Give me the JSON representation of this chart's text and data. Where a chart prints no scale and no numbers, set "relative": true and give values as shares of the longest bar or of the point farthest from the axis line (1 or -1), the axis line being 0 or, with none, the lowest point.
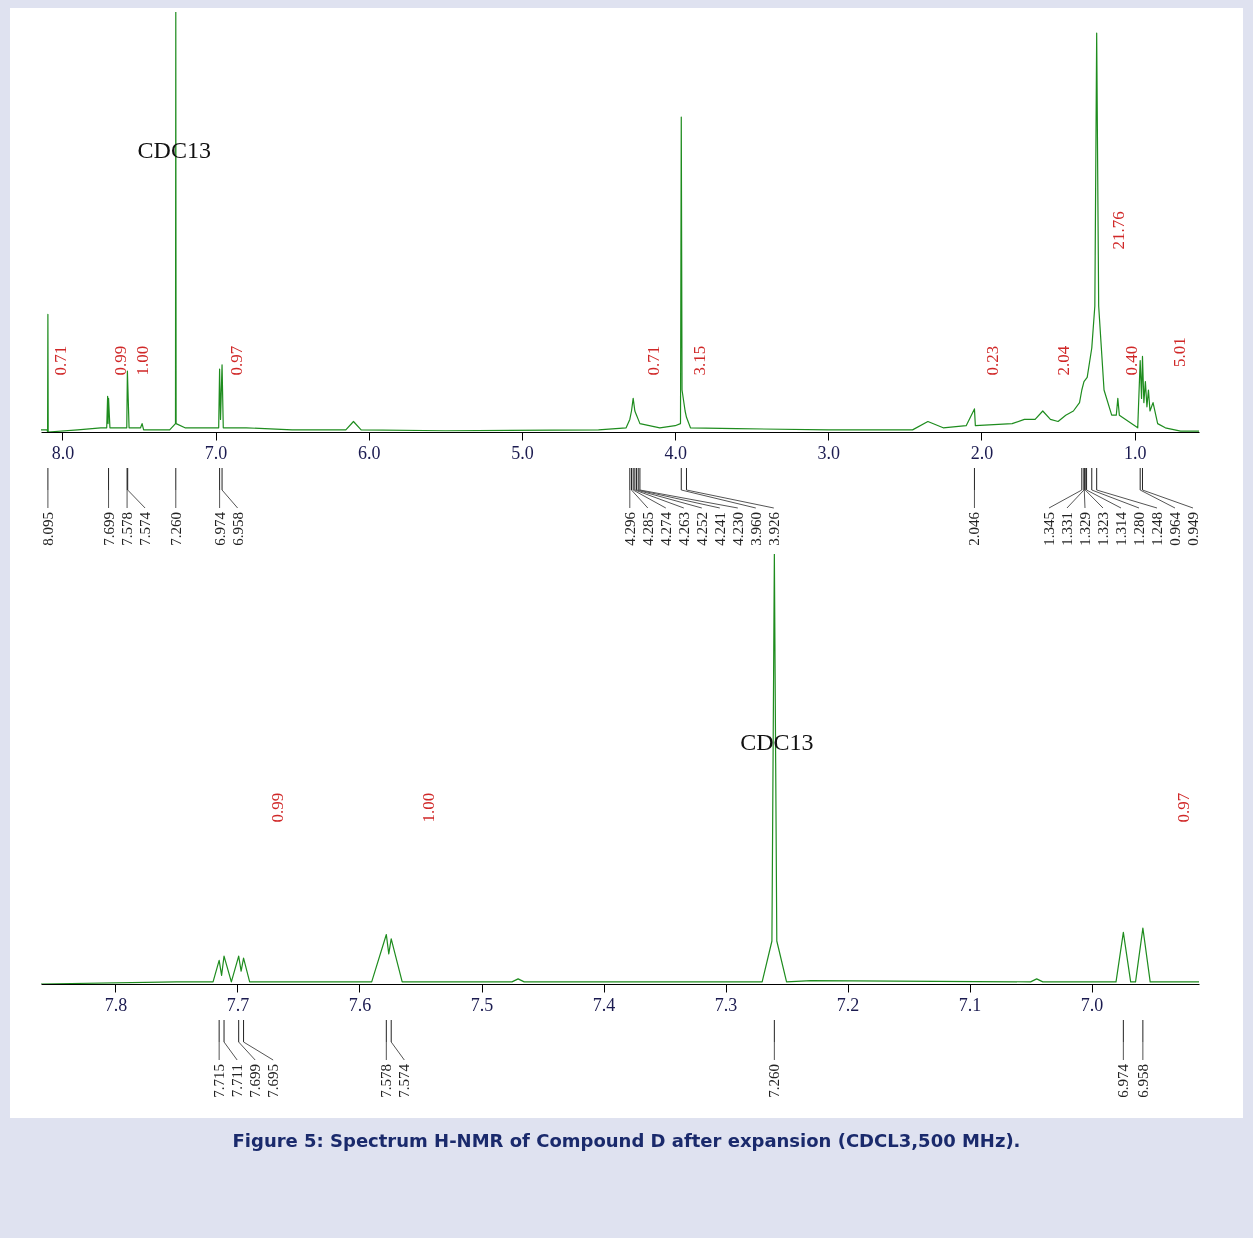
{
  "chart_data": [
    {
      "type": "line",
      "relative": true,
      "xlim": [
        8.14,
        0.58
      ],
      "xticks": [
        {
          "value": 8,
          "label": "8.0"
        },
        {
          "value": 7,
          "label": "7.0"
        },
        {
          "value": 6,
          "label": "6.0"
        },
        {
          "value": 5,
          "label": "5.0"
        },
        {
          "value": 4,
          "label": "4.0"
        },
        {
          "value": 3,
          "label": "3.0"
        },
        {
          "value": 2,
          "label": "2.0"
        },
        {
          "value": 1,
          "label": "1.0"
        }
      ],
      "grid": false,
      "series": [
        {
          "color": "#1e8c1e",
          "x": [
            8.14,
            8.1,
            8.097,
            8.095,
            8.093,
            7.9,
            7.75,
            7.711,
            7.705,
            7.702,
            7.699,
            7.69,
            7.58,
            7.576,
            7.565,
            7.49,
            7.48,
            7.47,
            7.3,
            7.262,
            7.26,
            7.258,
            7.2,
            7.05,
            6.98,
            6.974,
            6.968,
            6.958,
            6.95,
            6.8,
            6.5,
            6.15,
            6.1,
            6.05,
            5.5,
            4.5,
            4.32,
            4.296,
            4.285,
            4.274,
            4.263,
            4.252,
            4.241,
            4.23,
            4.1,
            4.0,
            3.965,
            3.96,
            3.955,
            3.935,
            3.926,
            3.9,
            3.6,
            3.0,
            2.45,
            2.35,
            2.25,
            2.1,
            2.046,
            2.04,
            1.8,
            1.72,
            1.65,
            1.6,
            1.55,
            1.5,
            1.45,
            1.4,
            1.36,
            1.345,
            1.331,
            1.31,
            1.28,
            1.26,
            1.248,
            1.235,
            1.2,
            1.15,
            1.12,
            1.11,
            1.1,
            0.98,
            0.964,
            0.955,
            0.949,
            0.94,
            0.93,
            0.92,
            0.91,
            0.9,
            0.88,
            0.85,
            0.8,
            0.7,
            0.58
          ],
          "values": [
            0.005,
            0.005,
            0,
            0.28,
            0,
            0.005,
            0.01,
            0.01,
            0.085,
            0.02,
            0.08,
            0.01,
            0.01,
            0.145,
            0.01,
            0.01,
            0.02,
            0.005,
            0.005,
            0.02,
            1,
            0.02,
            0.01,
            0.01,
            0.01,
            0.15,
            0.03,
            0.16,
            0.01,
            0.01,
            0.005,
            0.005,
            0.025,
            0.005,
            0.003,
            0.005,
            0.01,
            0.03,
            0.05,
            0.08,
            0.05,
            0.04,
            0.03,
            0.02,
            0.01,
            0.015,
            0.02,
            0.75,
            0.1,
            0.05,
            0.035,
            0.01,
            0.008,
            0.005,
            0.005,
            0.025,
            0.01,
            0.015,
            0.055,
            0.015,
            0.02,
            0.03,
            0.03,
            0.05,
            0.03,
            0.025,
            0.04,
            0.05,
            0.07,
            0.1,
            0.12,
            0.13,
            0.2,
            0.3,
            0.95,
            0.3,
            0.1,
            0.04,
            0.04,
            0.08,
            0.04,
            0.01,
            0.17,
            0.08,
            0.18,
            0.07,
            0.12,
            0.06,
            0.1,
            0.05,
            0.07,
            0.02,
            0.01,
            0.002,
            0.002
          ]
        }
      ],
      "annotations": [
        {
          "text": "CDC13",
          "x": 7.27,
          "y": 0.67
        },
        "0.71",
        "0.99",
        "1.00",
        "0.97",
        "0.71",
        "3.15",
        "0.23",
        "2.04",
        "21.76",
        "0.40",
        "5.01",
        {
          "text": "8.095",
          "x": 8.095
        },
        {
          "text": "7.699",
          "x": 7.699
        },
        {
          "text": "7.578",
          "x": 7.578
        },
        {
          "text": "7.574",
          "x": 7.574
        },
        {
          "text": "7.260",
          "x": 7.26
        },
        {
          "text": "6.974",
          "x": 6.974
        },
        {
          "text": "6.958",
          "x": 6.958
        },
        {
          "text": "4.296",
          "x": 4.296
        },
        {
          "text": "4.285",
          "x": 4.285
        },
        {
          "text": "4.274",
          "x": 4.274
        },
        {
          "text": "4.263",
          "x": 4.263
        },
        {
          "text": "4.252",
          "x": 4.252
        },
        {
          "text": "4.241",
          "x": 4.241
        },
        {
          "text": "4.230",
          "x": 4.23
        },
        {
          "text": "3.960",
          "x": 3.96
        },
        {
          "text": "3.926",
          "x": 3.926
        },
        {
          "text": "2.046",
          "x": 2.046
        },
        {
          "text": "1.345",
          "x": 1.345
        },
        {
          "text": "1.331",
          "x": 1.331
        },
        {
          "text": "1.329",
          "x": 1.329
        },
        {
          "text": "1.323",
          "x": 1.323
        },
        {
          "text": "1.314",
          "x": 1.314
        },
        {
          "text": "1.280",
          "x": 1.28
        },
        {
          "text": "1.248",
          "x": 1.248
        },
        {
          "text": "0.964",
          "x": 0.964
        },
        {
          "text": "0.949",
          "x": 0.949
        }
      ]
    },
    {
      "type": "line",
      "relative": true,
      "xlim": [
        7.861,
        6.912
      ],
      "xticks": [
        7.8,
        7.7,
        7.6,
        7.5,
        7.4,
        7.3,
        7.2,
        7.1,
        {
          "value": 7,
          "label": "7.0"
        }
      ],
      "grid": false,
      "series": [
        {
          "color": "#1e8c1e",
          "x": [
            7.861,
            7.75,
            7.72,
            7.715,
            7.713,
            7.711,
            7.705,
            7.699,
            7.697,
            7.695,
            7.69,
            7.59,
            7.578,
            7.576,
            7.574,
            7.565,
            7.475,
            7.47,
            7.465,
            7.27,
            7.262,
            7.26,
            7.258,
            7.25,
            7.23,
            7.05,
            7.045,
            7.04,
            6.98,
            6.974,
            6.968,
            6.964,
            6.958,
            6.952,
            6.912
          ],
          "values": [
            0,
            0.005,
            0.005,
            0.055,
            0.02,
            0.065,
            0.005,
            0.065,
            0.03,
            0.06,
            0.005,
            0.005,
            0.115,
            0.07,
            0.105,
            0.005,
            0.005,
            0.012,
            0.005,
            0.005,
            0.1,
            1,
            0.1,
            0.005,
            0.008,
            0.005,
            0.012,
            0.005,
            0.005,
            0.12,
            0.005,
            0.005,
            0.13,
            0.005,
            0.005
          ]
        }
      ],
      "annotations": [
        {
          "text": "CDC13",
          "x": 7.258,
          "y": 0.56
        },
        "0.99",
        "1.00",
        "0.97",
        {
          "text": "7.715",
          "x": 7.715
        },
        {
          "text": "7.711",
          "x": 7.711
        },
        {
          "text": "7.699",
          "x": 7.699
        },
        {
          "text": "7.695",
          "x": 7.695
        },
        {
          "text": "7.578",
          "x": 7.578
        },
        {
          "text": "7.574",
          "x": 7.574
        },
        {
          "text": "7.260",
          "x": 7.26
        },
        {
          "text": "6.974",
          "x": 6.974
        },
        {
          "text": "6.958",
          "x": 6.958
        },
        "Figure 5: Spectrum H-NMR of Compound D after expansion (CDCL3,500 MHz)."
      ]
    }
  ]
}
